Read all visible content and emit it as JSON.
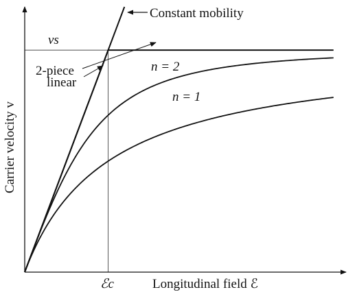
{
  "chart_data": {
    "type": "line",
    "xlabel": "Longitudinal field ℰ",
    "ylabel": "Carrier velocity v",
    "x_unit": "Ec",
    "y_unit": "vs",
    "xlim": [
      0,
      3.85
    ],
    "ylim": [
      0,
      1.195
    ],
    "ticks": {
      "x": [
        {
          "value": 1,
          "label": "ℰc"
        }
      ],
      "y": [
        {
          "value": 1,
          "label": "vs"
        }
      ]
    },
    "series": [
      {
        "name": "Constant mobility",
        "kind": "constant_mobility",
        "slope": 1
      },
      {
        "name": "2-piece linear",
        "kind": "piecewise",
        "points": [
          [
            0,
            0
          ],
          [
            1,
            1
          ],
          [
            3.7,
            1
          ]
        ]
      },
      {
        "name": "n = 2",
        "kind": "saturation",
        "n": 2
      },
      {
        "name": "n = 1",
        "kind": "saturation",
        "n": 1
      }
    ],
    "annotations": [
      {
        "text": "Constant mobility",
        "target": "Constant mobility"
      },
      {
        "text": "2-piece",
        "target": "2-piece linear"
      },
      {
        "text": "linear",
        "target": "2-piece linear"
      },
      {
        "text": "n = 2",
        "target": "n = 2"
      },
      {
        "text": "n = 1",
        "target": "n = 1"
      }
    ],
    "grid": false,
    "legend": "none"
  }
}
